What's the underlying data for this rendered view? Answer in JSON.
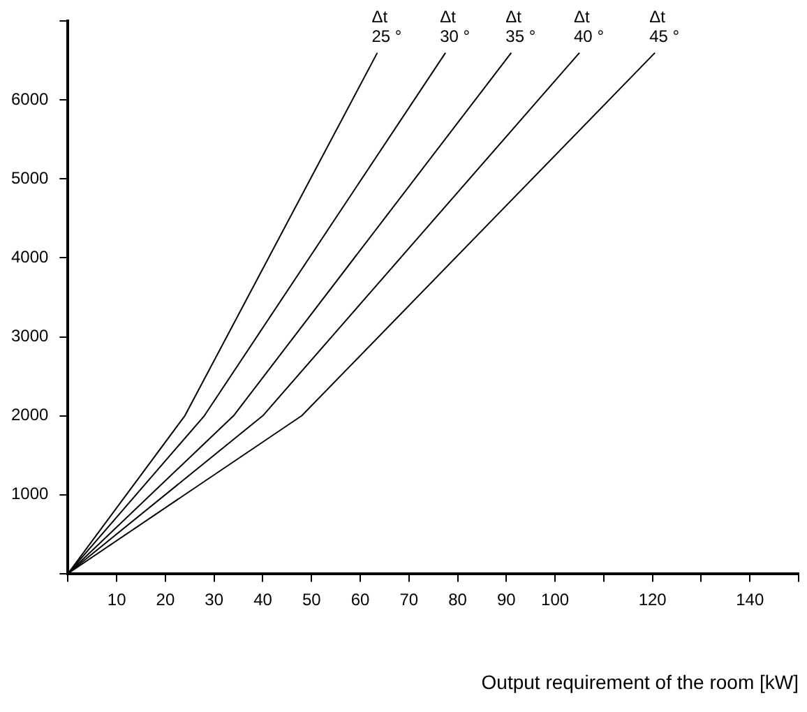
{
  "chart_data": {
    "type": "line",
    "xlabel": "Output requirement of the room [kW]",
    "xlim": [
      0,
      150
    ],
    "xticks": [
      {
        "value": 0,
        "label": null
      },
      10,
      20,
      30,
      40,
      50,
      60,
      70,
      80,
      90,
      100,
      {
        "value": 110,
        "label": null
      },
      120,
      {
        "value": 130,
        "label": null
      },
      140,
      {
        "value": 150,
        "label": null
      }
    ],
    "ylim": [
      0,
      7000
    ],
    "yticks": [
      {
        "value": 0,
        "label": null
      },
      1000,
      2000,
      3000,
      4000,
      5000,
      6000,
      {
        "value": 7000,
        "label": null
      }
    ],
    "grid": false,
    "legend": false,
    "marker": "none",
    "line_style": "solid",
    "series": [
      {
        "color": "#000000",
        "x": [
          0,
          24,
          63.5
        ],
        "values": [
          0,
          2000,
          6600
        ]
      },
      {
        "color": "#000000",
        "x": [
          0,
          28,
          77.5
        ],
        "values": [
          0,
          2000,
          6600
        ]
      },
      {
        "color": "#000000",
        "x": [
          0,
          34,
          91
        ],
        "values": [
          0,
          2000,
          6600
        ]
      },
      {
        "color": "#000000",
        "x": [
          0,
          40,
          105
        ],
        "values": [
          0,
          2000,
          6600
        ]
      },
      {
        "color": "#000000",
        "x": [
          0,
          48,
          120.5
        ],
        "values": [
          0,
          2000,
          6600
        ]
      }
    ],
    "annotations": [
      {
        "text": "Δt\n25 °",
        "x": 63.5,
        "y": 6600
      },
      {
        "text": "Δt\n30 °",
        "x": 77.5,
        "y": 6600
      },
      {
        "text": "Δt\n35 °",
        "x": 91,
        "y": 6600
      },
      {
        "text": "Δt\n40 °",
        "x": 105,
        "y": 6600
      },
      {
        "text": "Δt\n45 °",
        "x": 120.5,
        "y": 6600
      }
    ]
  }
}
